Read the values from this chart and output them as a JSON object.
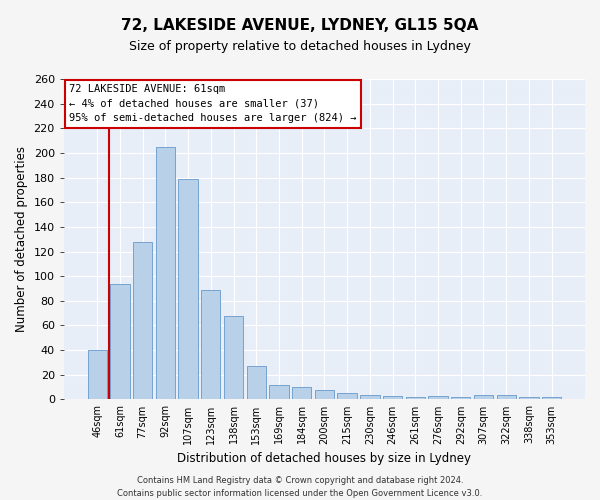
{
  "title": "72, LAKESIDE AVENUE, LYDNEY, GL15 5QA",
  "subtitle": "Size of property relative to detached houses in Lydney",
  "xlabel": "Distribution of detached houses by size in Lydney",
  "ylabel": "Number of detached properties",
  "bar_color": "#b8d0e8",
  "bar_edge_color": "#6699cc",
  "categories": [
    "46sqm",
    "61sqm",
    "77sqm",
    "92sqm",
    "107sqm",
    "123sqm",
    "138sqm",
    "153sqm",
    "169sqm",
    "184sqm",
    "200sqm",
    "215sqm",
    "230sqm",
    "246sqm",
    "261sqm",
    "276sqm",
    "292sqm",
    "307sqm",
    "322sqm",
    "338sqm",
    "353sqm"
  ],
  "values": [
    40,
    94,
    128,
    205,
    179,
    89,
    68,
    27,
    12,
    10,
    8,
    5,
    4,
    3,
    2,
    3,
    2,
    4,
    4,
    2,
    2
  ],
  "vline_index": 1,
  "annotation_title": "72 LAKESIDE AVENUE: 61sqm",
  "annotation_line1": "← 4% of detached houses are smaller (37)",
  "annotation_line2": "95% of semi-detached houses are larger (824) →",
  "annotation_box_color": "#ffffff",
  "annotation_border_color": "#cc0000",
  "vline_color": "#cc0000",
  "plot_bg_color": "#e8eef8",
  "fig_bg_color": "#f5f5f5",
  "grid_color": "#ffffff",
  "ylim": [
    0,
    260
  ],
  "yticks": [
    0,
    20,
    40,
    60,
    80,
    100,
    120,
    140,
    160,
    180,
    200,
    220,
    240,
    260
  ],
  "footer_line1": "Contains HM Land Registry data © Crown copyright and database right 2024.",
  "footer_line2": "Contains public sector information licensed under the Open Government Licence v3.0.",
  "title_fontsize": 11,
  "subtitle_fontsize": 9,
  "ylabel_fontsize": 8.5,
  "xlabel_fontsize": 8.5,
  "ytick_fontsize": 8,
  "xtick_fontsize": 7,
  "footer_fontsize": 6,
  "annotation_fontsize": 7.5
}
